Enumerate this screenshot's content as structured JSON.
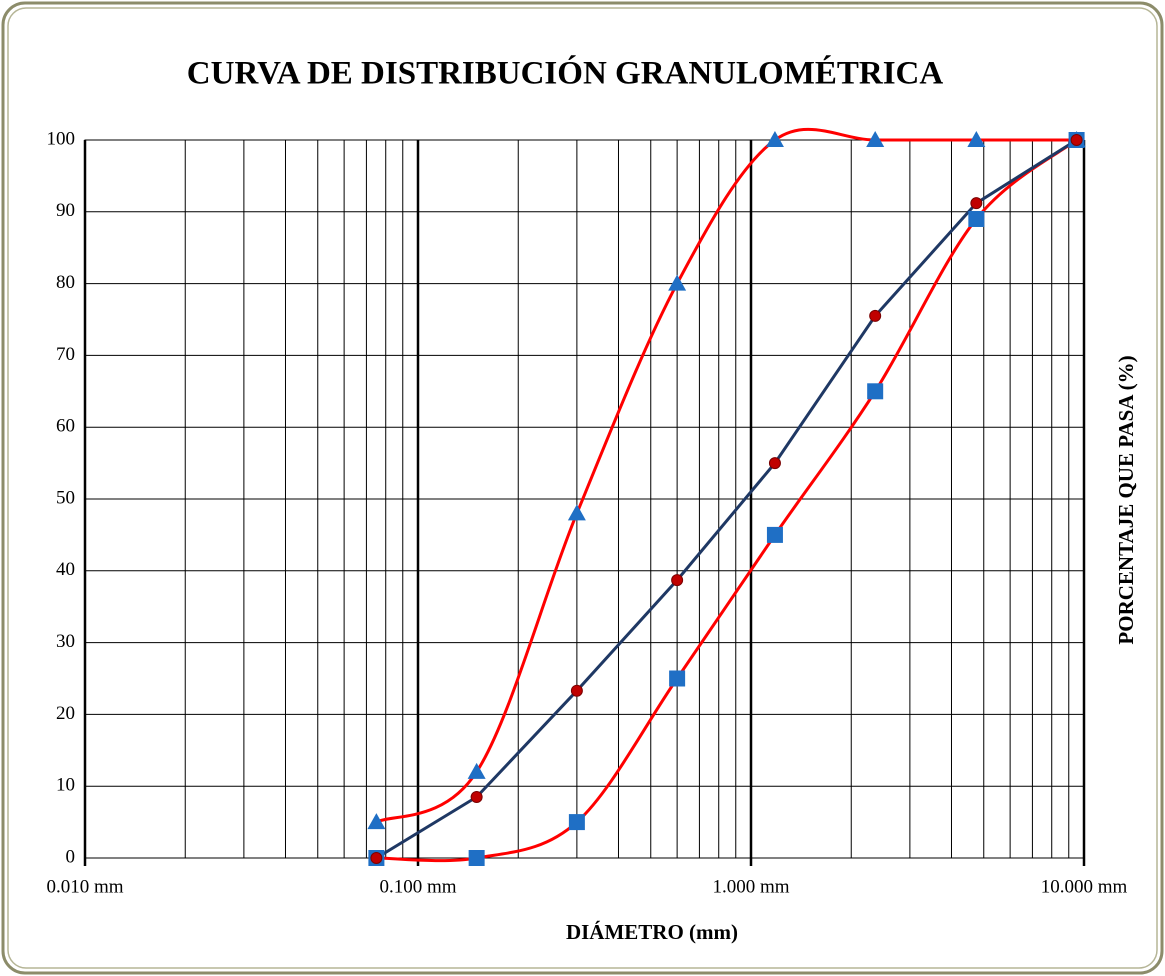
{
  "chart_data": {
    "type": "line",
    "title": "CURVA DE DISTRIBUCIÓN GRANULOMÉTRICA",
    "x_label": "DIÁMETRO (mm)",
    "y_label": "PORCENTAJE QUE PASA (%)",
    "x": [
      0.075,
      0.15,
      0.3,
      0.6,
      1.18,
      2.36,
      4.75,
      9.5
    ],
    "x_scale": "log",
    "xlim": [
      0.01,
      10
    ],
    "xticks": [
      {
        "value": 0.01,
        "label": "0.010 mm"
      },
      {
        "value": 0.1,
        "label": "0.100 mm"
      },
      {
        "value": 1,
        "label": "1.000 mm"
      },
      {
        "value": 10,
        "label": "10.000 mm"
      }
    ],
    "ylim": [
      0,
      100
    ],
    "yticks": [
      0,
      10,
      20,
      30,
      40,
      50,
      60,
      70,
      80,
      90,
      100
    ],
    "grid": true,
    "series": [
      {
        "marker": "triangle",
        "color": "#1f6fc5",
        "line_color": "#ff0000",
        "smooth": true,
        "values": [
          5,
          12,
          48,
          80,
          100,
          100,
          100,
          100
        ]
      },
      {
        "marker": "square",
        "color": "#1f6fc5",
        "line_color": "#ff0000",
        "smooth": true,
        "values": [
          0,
          0,
          5,
          25,
          45,
          65,
          89,
          100
        ]
      },
      {
        "marker": "circle",
        "color": "#c00000",
        "line_color": "#1f3864",
        "smooth": false,
        "values": [
          0,
          8.5,
          23.3,
          38.7,
          55,
          75.5,
          91.2,
          100
        ]
      }
    ]
  }
}
